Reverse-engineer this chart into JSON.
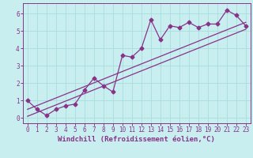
{
  "xlabel": "Windchill (Refroidissement éolien,°C)",
  "bg_color": "#c8eef0",
  "grid_color": "#aadddd",
  "line_color": "#883388",
  "xlim": [
    -0.5,
    23.5
  ],
  "ylim": [
    -0.3,
    6.6
  ],
  "xticks": [
    0,
    1,
    2,
    3,
    4,
    5,
    6,
    7,
    8,
    9,
    10,
    11,
    12,
    13,
    14,
    15,
    16,
    17,
    18,
    19,
    20,
    21,
    22,
    23
  ],
  "yticks": [
    0,
    1,
    2,
    3,
    4,
    5,
    6
  ],
  "data_x": [
    0,
    1,
    2,
    3,
    4,
    5,
    6,
    7,
    8,
    9,
    10,
    11,
    12,
    13,
    14,
    15,
    16,
    17,
    18,
    19,
    20,
    21,
    22,
    23
  ],
  "data_y": [
    1.0,
    0.5,
    0.15,
    0.5,
    0.7,
    0.8,
    1.6,
    2.3,
    1.85,
    1.5,
    3.6,
    3.5,
    4.0,
    5.65,
    4.5,
    5.3,
    5.2,
    5.5,
    5.2,
    5.4,
    5.4,
    6.2,
    5.9,
    5.3
  ],
  "trend1_x": [
    0,
    23
  ],
  "trend1_y": [
    0.1,
    5.1
  ],
  "trend2_x": [
    0,
    23
  ],
  "trend2_y": [
    0.5,
    5.5
  ],
  "xlabel_fontsize": 6.5,
  "tick_fontsize": 5.5,
  "marker": "D",
  "marker_size": 2.5,
  "line_width": 0.9
}
